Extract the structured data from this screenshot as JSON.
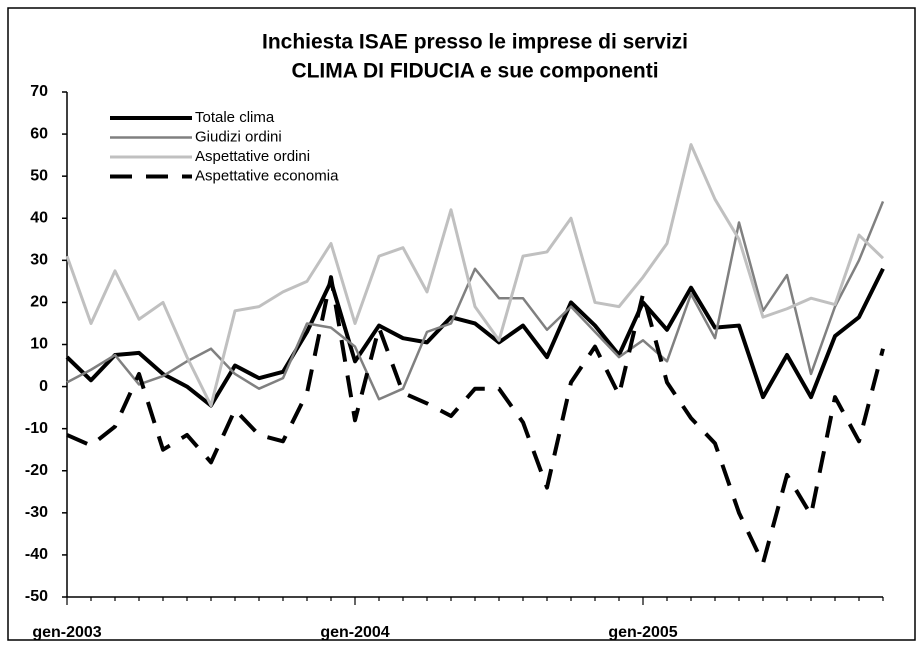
{
  "chart_data": {
    "type": "line",
    "title": "Inchiesta ISAE presso le imprese di servizi",
    "subtitle": "CLIMA DI FIDUCIA e sue componenti",
    "categories": [
      "gen-2003",
      null,
      null,
      null,
      null,
      null,
      null,
      null,
      null,
      null,
      null,
      null,
      "gen-2004",
      null,
      null,
      null,
      null,
      null,
      null,
      null,
      null,
      null,
      null,
      null,
      "gen-2005",
      null,
      null,
      null,
      null,
      null,
      null,
      null,
      null,
      null,
      null
    ],
    "series": [
      {
        "name": "Totale clima",
        "color": "#000000",
        "style": "solid",
        "values": [
          7,
          1.5,
          7.5,
          8,
          3,
          0,
          -4.5,
          5,
          2,
          3.5,
          13,
          25,
          6,
          14.5,
          11.5,
          10.5,
          16.5,
          15,
          10.5,
          14.5,
          7,
          20,
          14.5,
          7.5,
          20,
          13.5,
          23.5,
          14,
          14.5,
          -2.5,
          7.5,
          -2.5,
          12,
          16.5,
          28
        ]
      },
      {
        "name": "Giudizi ordini",
        "color": "#808080",
        "style": "solid",
        "values": [
          1,
          4,
          7.5,
          0.5,
          2.5,
          6,
          9,
          3,
          -0.5,
          2,
          15,
          14,
          9.5,
          -3,
          -0.5,
          13,
          15,
          28,
          21,
          21,
          13.5,
          19,
          13,
          7,
          11,
          6,
          22,
          11.5,
          39,
          18,
          26.5,
          3,
          19,
          30,
          44
        ]
      },
      {
        "name": "Aspettative ordini",
        "color": "#c0c0c0",
        "style": "solid",
        "values": [
          31,
          15,
          27.5,
          16,
          20,
          7,
          -4.5,
          18,
          19,
          22.5,
          25,
          34,
          15,
          31,
          33,
          22.5,
          42,
          19,
          11,
          31,
          32,
          40,
          20,
          19,
          26,
          34,
          57.5,
          44.5,
          35,
          16.5,
          18.5,
          21,
          19.5,
          36,
          30.5
        ]
      },
      {
        "name": "Aspettative economia",
        "color": "#000000",
        "style": "dashed",
        "values": [
          -11.5,
          -14,
          -9.5,
          3,
          -15,
          -11.5,
          -18,
          -5.5,
          -11.5,
          -13,
          -1.5,
          26,
          -8,
          14,
          -1.5,
          -4,
          -7,
          -0.5,
          -0.5,
          -8.5,
          -24,
          1,
          9.5,
          -2,
          22,
          1,
          -7.5,
          -13.5,
          -30,
          -42,
          -21,
          -30.5,
          -2.5,
          -13,
          9
        ]
      }
    ],
    "ylim": [
      -50,
      70
    ],
    "yticks": [
      -50,
      -40,
      -30,
      -20,
      -10,
      0,
      10,
      20,
      30,
      40,
      50,
      60,
      70
    ]
  }
}
